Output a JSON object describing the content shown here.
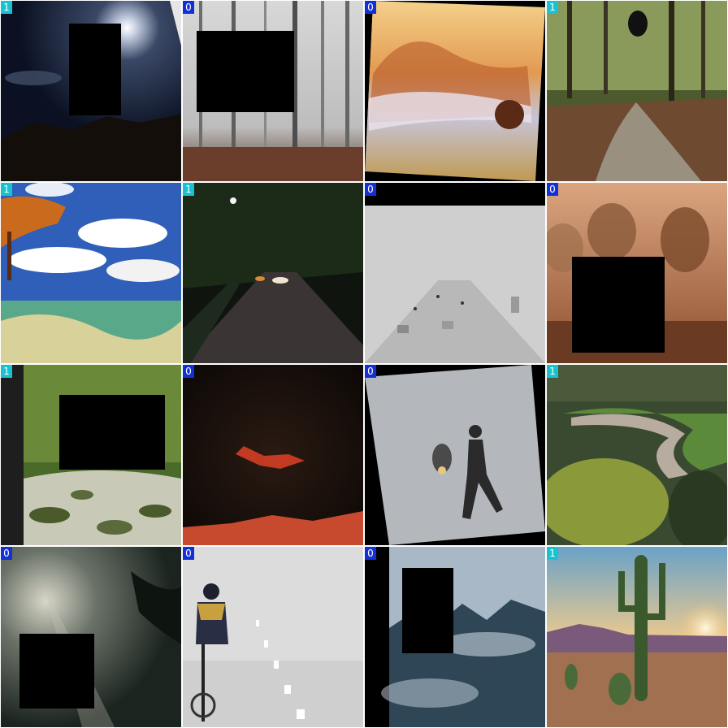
{
  "grid": {
    "tiles": [
      {
        "label": "1",
        "label_color": "#19c2d0",
        "scene": "night-moon-sky"
      },
      {
        "label": "0",
        "label_color": "#1330d6",
        "scene": "foggy-forest"
      },
      {
        "label": "0",
        "label_color": "#1330d6",
        "scene": "misty-sunrise-hills"
      },
      {
        "label": "1",
        "label_color": "#19c2d0",
        "scene": "forest-path"
      },
      {
        "label": "1",
        "label_color": "#19c2d0",
        "scene": "tropical-beach"
      },
      {
        "label": "1",
        "label_color": "#19c2d0",
        "scene": "night-street"
      },
      {
        "label": "0",
        "label_color": "#1330d6",
        "scene": "foggy-highway"
      },
      {
        "label": "0",
        "label_color": "#1330d6",
        "scene": "misty-orange-trees"
      },
      {
        "label": "1",
        "label_color": "#19c2d0",
        "scene": "forest-stream"
      },
      {
        "label": "0",
        "label_color": "#1330d6",
        "scene": "dark-red-night"
      },
      {
        "label": "0",
        "label_color": "#1330d6",
        "scene": "fog-walker"
      },
      {
        "label": "1",
        "label_color": "#19c2d0",
        "scene": "river-valley"
      },
      {
        "label": "0",
        "label_color": "#1330d6",
        "scene": "sunbeam-forest"
      },
      {
        "label": "0",
        "label_color": "#1330d6",
        "scene": "fog-cyclist"
      },
      {
        "label": "0",
        "label_color": "#1330d6",
        "scene": "misty-pine-forest"
      },
      {
        "label": "1",
        "label_color": "#19c2d0",
        "scene": "desert-cactus-sunset"
      }
    ]
  }
}
